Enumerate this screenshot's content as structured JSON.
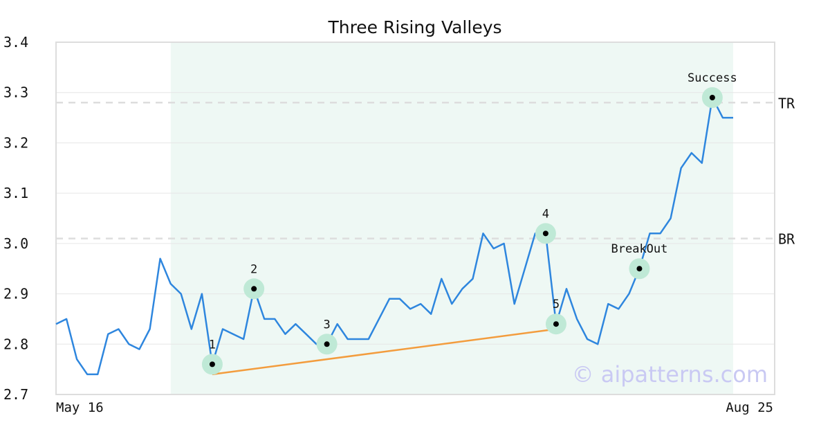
{
  "chart_data": {
    "type": "line",
    "title": "Three Rising Valleys",
    "watermark": "© aipatterns.com",
    "ylim": [
      2.7,
      3.4
    ],
    "yticks": [
      "2.7",
      "2.8",
      "2.9",
      "3.0",
      "3.1",
      "3.2",
      "3.3",
      "3.4"
    ],
    "xtick_labels": [
      "May 16",
      "Aug 25"
    ],
    "grid": "horizontal",
    "colors": {
      "line": "#2e86de",
      "trendline": "#f39c3d",
      "highlight": "#eef8f4",
      "marker_halo": "#bfe9d6",
      "level": "#dddddd"
    },
    "series": [
      {
        "values": [
          2.84,
          2.85,
          2.77,
          2.74,
          2.74,
          2.82,
          2.83,
          2.8,
          2.79,
          2.83,
          2.97,
          2.92,
          2.9,
          2.83,
          2.9,
          2.76,
          2.83,
          2.82,
          2.81,
          2.91,
          2.85,
          2.85,
          2.82,
          2.84,
          2.82,
          2.8,
          2.8,
          2.84,
          2.81,
          2.81,
          2.81,
          2.85,
          2.89,
          2.89,
          2.87,
          2.88,
          2.86,
          2.93,
          2.88,
          2.91,
          2.93,
          3.02,
          2.99,
          3.0,
          2.88,
          2.95,
          3.02,
          3.02,
          2.84,
          2.91,
          2.85,
          2.81,
          2.8,
          2.88,
          2.87,
          2.9,
          2.95,
          3.02,
          3.02,
          3.05,
          3.15,
          3.18,
          3.16,
          3.29,
          3.25,
          3.25
        ]
      }
    ],
    "highlight_range": [
      13,
      65
    ],
    "levels": [
      {
        "label": "TR",
        "value": 3.28
      },
      {
        "label": "BR",
        "value": 3.01
      }
    ],
    "trendline": [
      {
        "index": 15,
        "value": 2.74
      },
      {
        "index": 48,
        "value": 2.83
      }
    ],
    "markers": [
      {
        "label": "1",
        "index": 15,
        "value": 2.76,
        "label_pos": "above"
      },
      {
        "label": "2",
        "index": 19,
        "value": 2.91,
        "label_pos": "above"
      },
      {
        "label": "3",
        "index": 26,
        "value": 2.8,
        "label_pos": "above"
      },
      {
        "label": "4",
        "index": 47,
        "value": 3.02,
        "label_pos": "above"
      },
      {
        "label": "5",
        "index": 48,
        "value": 2.84,
        "label_pos": "above"
      },
      {
        "label": "BreakOut",
        "index": 56,
        "value": 2.95,
        "label_pos": "above"
      },
      {
        "label": "Success",
        "index": 63,
        "value": 3.29,
        "label_pos": "above"
      }
    ]
  }
}
